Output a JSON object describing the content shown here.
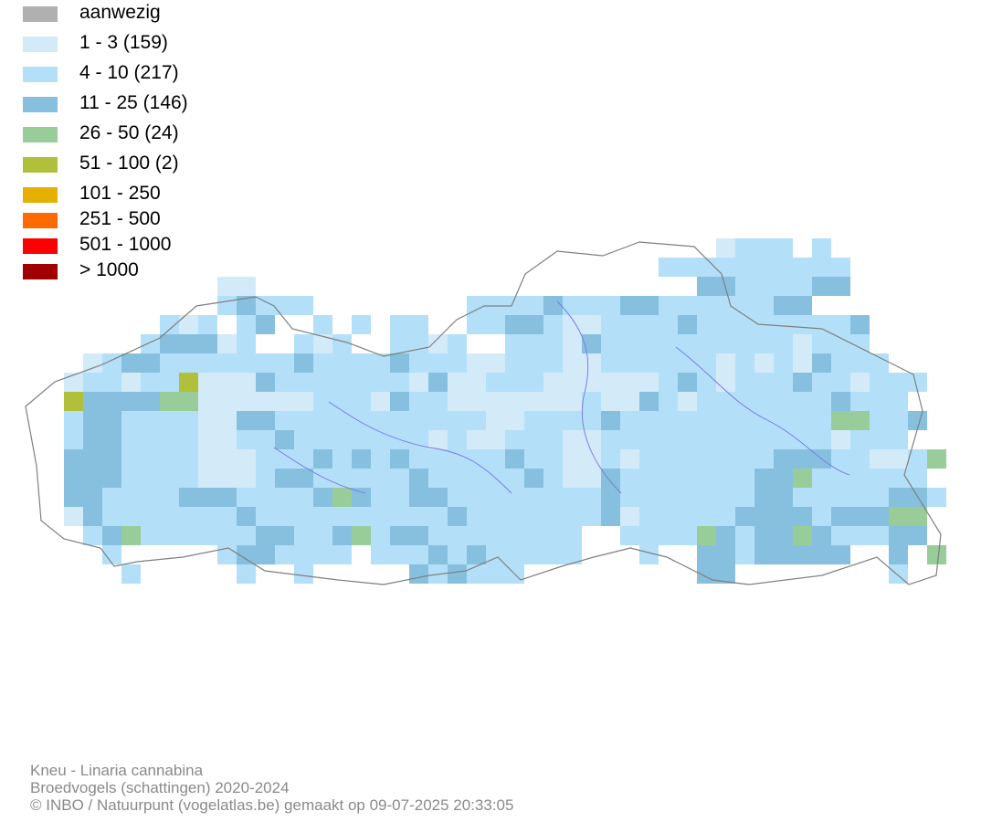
{
  "legend": {
    "items": [
      {
        "label": "aanwezig",
        "color": "#b0b0b0"
      },
      {
        "label": "1 - 3 (159)",
        "color": "#d3eaf8"
      },
      {
        "label": "4 - 10 (217)",
        "color": "#b3e0f8"
      },
      {
        "label": "11 - 25 (146)",
        "color": "#86c0de"
      },
      {
        "label": "26 - 50 (24)",
        "color": "#98cc98"
      },
      {
        "label": "51 - 100 (2)",
        "color": "#b0c03a"
      },
      {
        "label": "101 - 250",
        "color": "#e6b000"
      },
      {
        "label": "251 - 500",
        "color": "#ff6a00"
      },
      {
        "label": "501 - 1000",
        "color": "#ff0000"
      },
      {
        "label": "> 1000",
        "color": "#a00000"
      }
    ]
  },
  "map": {
    "grid_columns": 48,
    "grid_rows": 19,
    "cells_by_row": [
      "...............................................",
      "....................................ABBB.B......",
      ".................................BBBBBBBBBB......",
      "..........AA.......................CCBBBBCC.....",
      "..........BCBBB........BBBBCBBBCCBBBBBBCC.......",
      ".......BAB.BC..B.B.BB..BBCCBAABBBBCBBBBBBBBC....",
      "......BCCCAB..BAB..BBAB..BBBACBBBBBBBBBBABBB....",
      "...ABCCBBBBBBBCBBBBCBBBAABBBAABBBBBBABABACBBB...",
      "..ABBABBBAAACBBBBBBBACAABBBAAAAAABCBABBBCBBABBB.",
      "...CCCCDDAAAAAABBBACBBAAAAAAABAACBABBBBBBBCBBB...",
      "..BCCBBBBAACCBBBBBBBBBBBAABBBBCBBBBBBBBBBBDDBBC.",
      "..BCCBBBBAABBCBBBBBBBABAABBBAABBBBBBBBBBBBABBB..",
      "..CCCBBBBAAABBBCBCBCBBBBBCBBAABABBBBBBBCCCBBAABD",
      "..CCCBBBBAAABCCBBBBBCBBBBBCBAACBBBBBBBCCDBBBBBB.",
      "..CCBBBBCCCBBBBCDCBBCCBBBBBBBBCBBBBBBBCCBBBBBCCB",
      "..ACBBBBBBBCBBBBBBBBBBCBBBBBBBCABBBBBCCCCBCCCDD.",
      "...BCDBBBBBBCCBBCDBCCBBBBBBBB..BBBBDCBCCDCBBBCC.",
      "....B.....BCCBBBB.BBBCBCBBBBB...B..CCBCCCCC..C.D",
      ".....B.....B..B.....CBCBBB.........CC........B.."
    ],
    "boundary_color": "#7f7f7f",
    "river_color": "#7a72e8"
  },
  "footer": {
    "species": "Kneu - Linaria cannabina",
    "dataset": "Broedvogels (schattingen) 2020-2024",
    "credit": "© INBO / Natuurpunt (vogelatlas.be) gemaakt op 09-07-2025 20:33:05"
  }
}
